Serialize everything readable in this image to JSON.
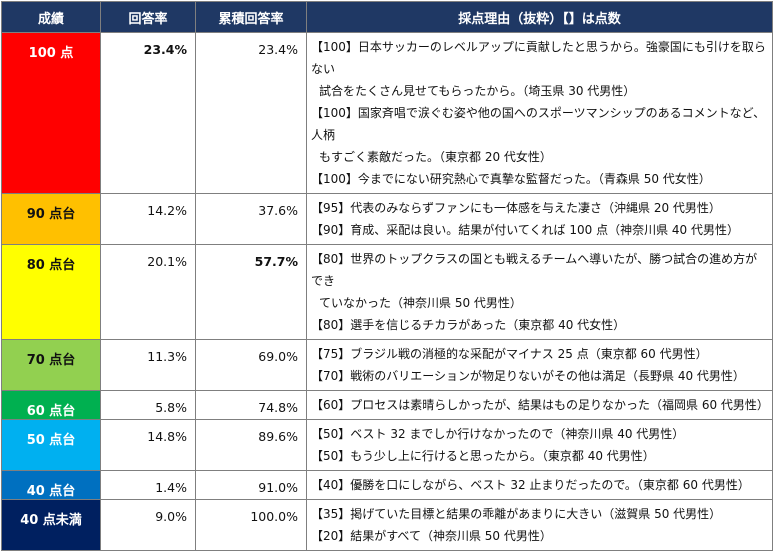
{
  "headers": {
    "grade": "成績",
    "rate": "回答率",
    "cumulative": "累積回答率",
    "reasons": "採点理由（抜粋）【】は点数"
  },
  "header_bg": "#1f3864",
  "rows": [
    {
      "grade": "100 点",
      "bg": "#ff0000",
      "fg": "#ffffff",
      "rate": "23.4%",
      "cumulative": "23.4%",
      "reasons": [
        [
          "【100】日本サッカーのレベルアップに貢献したと思うから。強豪国にも引けを取らない",
          "試合をたくさん見せてもらったから。（埼玉県 30 代男性）"
        ],
        [
          "【100】国家斉唱で涙ぐむ姿や他の国へのスポーツマンシップのあるコメントなど、人柄",
          "もすごく素敵だった。（東京都 20 代女性）"
        ],
        [
          "【100】今までにない研究熱心で真摯な監督だった。（青森県 50 代女性）"
        ]
      ]
    },
    {
      "grade": "90 点台",
      "bg": "#ffc000",
      "fg": "#111111",
      "rate": "14.2%",
      "cumulative": "37.6%",
      "reasons": [
        [
          "【95】代表のみならずファンにも一体感を与えた凄さ（沖縄県 20 代男性）"
        ],
        [
          "【90】育成、采配は良い。結果が付いてくれば 100 点（神奈川県 40 代男性）"
        ]
      ]
    },
    {
      "grade": "80 点台",
      "bg": "#ffff00",
      "fg": "#111111",
      "rate": "20.1%",
      "cumulative": "57.7%",
      "reasons": [
        [
          "【80】世界のトップクラスの国とも戦えるチームへ導いたが、勝つ試合の進め方ができ",
          "ていなかった（神奈川県 50 代男性）"
        ],
        [
          "【80】選手を信じるチカラがあった（東京都 40 代女性）"
        ]
      ]
    },
    {
      "grade": "70 点台",
      "bg": "#92d050",
      "fg": "#111111",
      "rate": "11.3%",
      "cumulative": "69.0%",
      "reasons": [
        [
          "【75】ブラジル戦の消極的な采配がマイナス 25 点（東京都 60 代男性）"
        ],
        [
          "【70】戦術のバリエーションが物足りないがその他は満足（長野県 40 代男性）"
        ]
      ]
    },
    {
      "grade": "60 点台",
      "bg": "#00b050",
      "fg": "#ffffff",
      "rate": "5.8%",
      "cumulative": "74.8%",
      "reasons": [
        [
          "【60】プロセスは素晴らしかったが、結果はもの足りなかった（福岡県 60 代男性）"
        ]
      ]
    },
    {
      "grade": "50 点台",
      "bg": "#00b0f0",
      "fg": "#ffffff",
      "rate": "14.8%",
      "cumulative": "89.6%",
      "reasons": [
        [
          "【50】ベスト 32 までしか行けなかったので（神奈川県 40 代男性）"
        ],
        [
          "【50】もう少し上に行けると思ったから。（東京都 40 代男性）"
        ]
      ]
    },
    {
      "grade": "40 点台",
      "bg": "#0070c0",
      "fg": "#ffffff",
      "rate": "1.4%",
      "cumulative": "91.0%",
      "reasons": [
        [
          "【40】優勝を口にしながら、ベスト 32 止まりだったので。（東京都 60 代男性）"
        ]
      ]
    },
    {
      "grade": "40 点未満",
      "bg": "#002060",
      "fg": "#ffffff",
      "rate": "9.0%",
      "cumulative": "100.0%",
      "reasons": [
        [
          "【35】掲げていた目標と結果の乖離があまりに大きい（滋賀県 50 代男性）"
        ],
        [
          "【20】結果がすべて（神奈川県 50 代男性）"
        ]
      ]
    }
  ]
}
